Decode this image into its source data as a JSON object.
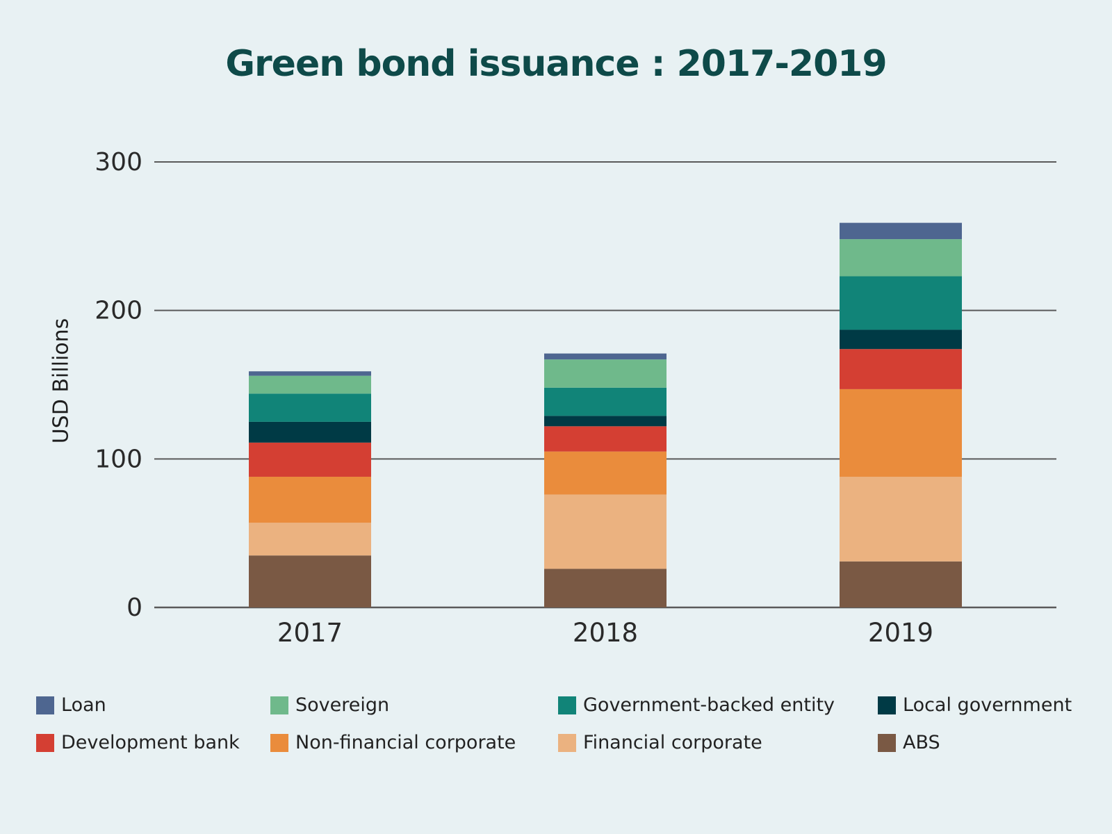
{
  "chart_data": {
    "type": "bar",
    "stacked": true,
    "title": "Green bond issuance : 2017-2019",
    "ylabel": "USD Billions",
    "xlabel": "",
    "ylim": [
      0,
      300
    ],
    "yticks": [
      0,
      100,
      200,
      300
    ],
    "grid": true,
    "legend_position": "bottom",
    "categories": [
      "2017",
      "2018",
      "2019"
    ],
    "series": [
      {
        "name": "ABS",
        "color": "#7a5944",
        "values": [
          35,
          26,
          31
        ]
      },
      {
        "name": "Financial corporate",
        "color": "#ebb280",
        "values": [
          22,
          50,
          57
        ]
      },
      {
        "name": "Non-financial corporate",
        "color": "#ea8c3c",
        "values": [
          31,
          29,
          59
        ]
      },
      {
        "name": "Development bank",
        "color": "#d43f33",
        "values": [
          23,
          17,
          27
        ]
      },
      {
        "name": "Local government",
        "color": "#003a45",
        "values": [
          14,
          7,
          13
        ]
      },
      {
        "name": "Government-backed entity",
        "color": "#118478",
        "values": [
          19,
          19,
          36
        ]
      },
      {
        "name": "Sovereign",
        "color": "#6fb98b",
        "values": [
          12,
          19,
          25
        ]
      },
      {
        "name": "Loan",
        "color": "#4e6690",
        "values": [
          3,
          4,
          11
        ]
      }
    ],
    "legend_order": [
      "Loan",
      "Sovereign",
      "Government-backed entity",
      "Local government",
      "Development bank",
      "Non-financial corporate",
      "Financial corporate",
      "ABS"
    ]
  }
}
